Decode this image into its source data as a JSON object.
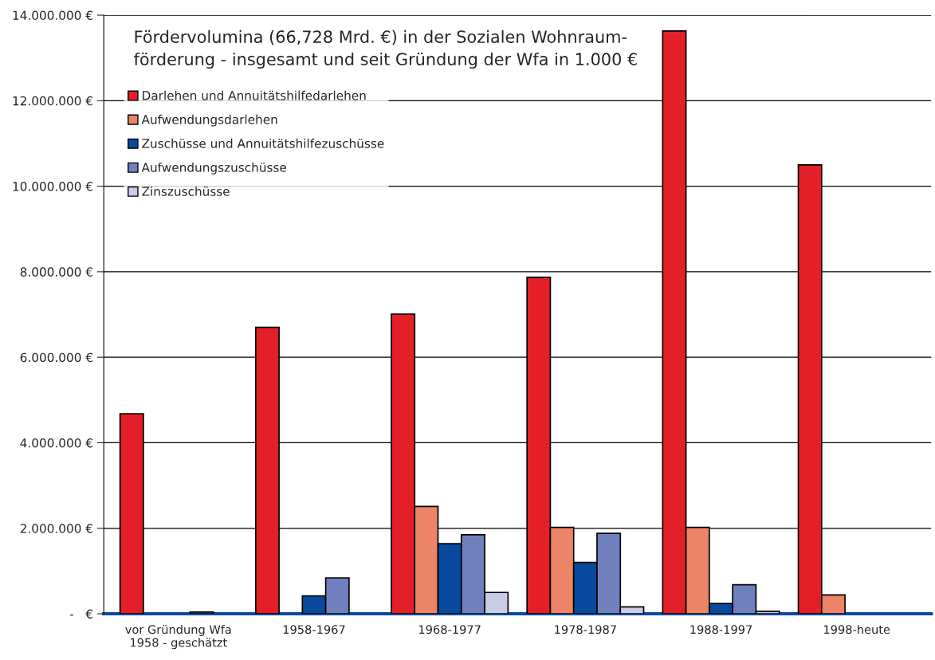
{
  "chart_data": {
    "type": "bar",
    "title": "Fördervolumina (66,728 Mrd. €) in der Sozialen Wohnraum-\nförderung - insgesamt und seit Gründung der Wfa in 1.000 €",
    "categories": [
      "vor Gründung Wfa\n1958 - geschätzt",
      "1958-1967",
      "1968-1977",
      "1978-1987",
      "1988-1997",
      "1998-heute"
    ],
    "series": [
      {
        "name": "Darlehen und Annuitätshilfedarlehen",
        "color": "#e32027",
        "values": [
          4680000,
          6700000,
          7010000,
          7870000,
          13630000,
          10500000
        ]
      },
      {
        "name": "Aufwendungsdarlehen",
        "color": "#ec8467",
        "values": [
          null,
          null,
          2510000,
          2020000,
          2020000,
          440000
        ]
      },
      {
        "name": "Zuschüsse und Annuitätshilfezuschüsse",
        "color": "#0a4a9e",
        "values": [
          null,
          420000,
          1640000,
          1200000,
          240000,
          null
        ]
      },
      {
        "name": "Aufwendungszuschüsse",
        "color": "#7080bf",
        "values": [
          40000,
          840000,
          1850000,
          1880000,
          680000,
          null
        ]
      },
      {
        "name": "Zinszuschüsse",
        "color": "#c8cce8",
        "values": [
          null,
          null,
          500000,
          160000,
          60000,
          null
        ]
      }
    ],
    "ylim": [
      0,
      14000000
    ],
    "yticks": [
      {
        "value": 0,
        "label": "-   €"
      },
      {
        "value": 2000000,
        "label": "2.000.000 €"
      },
      {
        "value": 4000000,
        "label": "4.000.000 €"
      },
      {
        "value": 6000000,
        "label": "6.000.000 €"
      },
      {
        "value": 8000000,
        "label": "8.000.000 €"
      },
      {
        "value": 10000000,
        "label": "10.000.000 €"
      },
      {
        "value": 12000000,
        "label": "12.000.000 €"
      },
      {
        "value": 14000000,
        "label": "14.000.000 €"
      }
    ],
    "grid": "y",
    "legend": "top left"
  }
}
